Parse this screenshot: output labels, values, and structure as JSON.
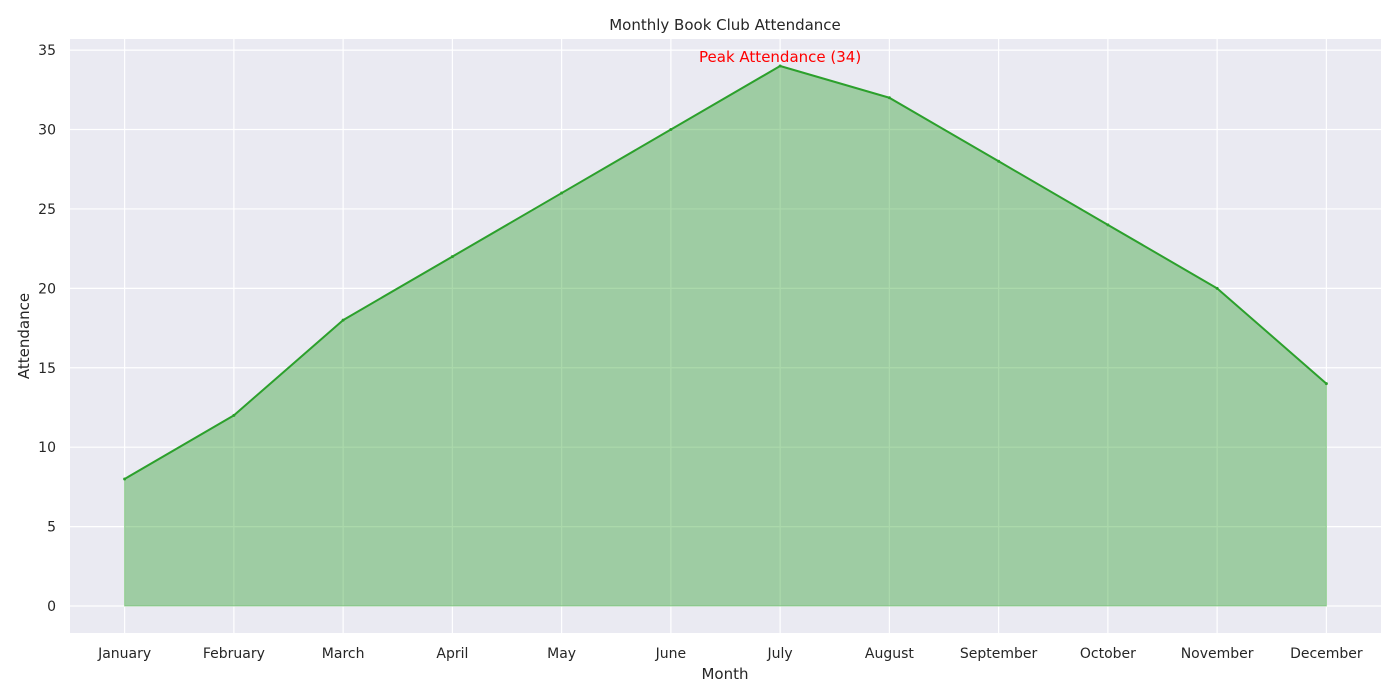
{
  "chart_data": {
    "type": "area",
    "title": "Monthly Book Club Attendance",
    "xlabel": "Month",
    "ylabel": "Attendance",
    "categories": [
      "January",
      "February",
      "March",
      "April",
      "May",
      "June",
      "July",
      "August",
      "September",
      "October",
      "November",
      "December"
    ],
    "values": [
      8,
      12,
      18,
      22,
      26,
      30,
      34,
      32,
      28,
      24,
      20,
      14
    ],
    "ylim": [
      -1.7,
      35.7
    ],
    "yticks": [
      0,
      5,
      10,
      15,
      20,
      25,
      30,
      35
    ],
    "grid": true,
    "legend": "none",
    "annotation": {
      "text": "Peak Attendance (34)",
      "category": "July",
      "value": 34,
      "color": "#ff0000"
    },
    "colors": {
      "line": "#2ca02c",
      "fill": "#2ca02c",
      "plot_background": "#eaeaf2",
      "grid": "#ffffff"
    }
  }
}
